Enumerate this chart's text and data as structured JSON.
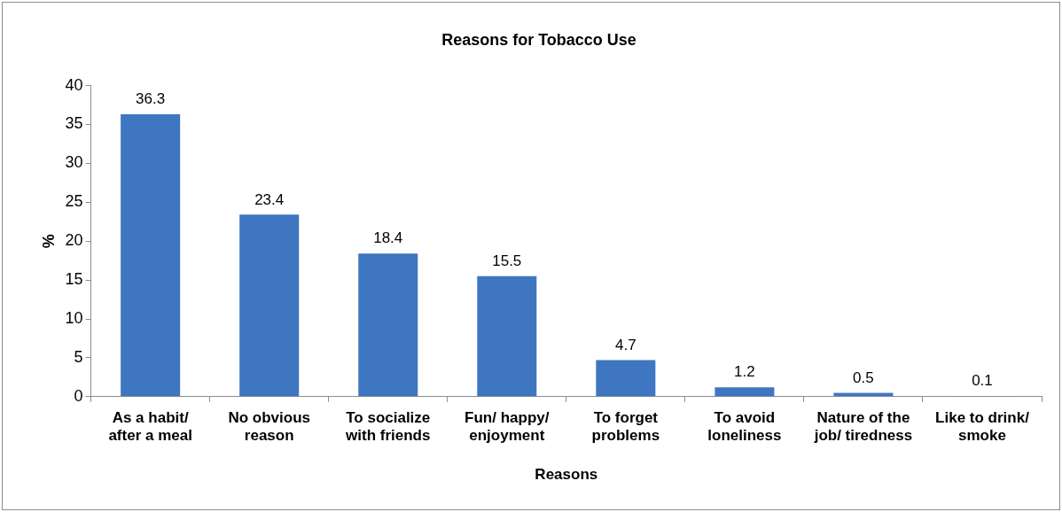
{
  "chart_data": {
    "type": "bar",
    "title": "Reasons for Tobacco Use",
    "xlabel": "Reasons",
    "ylabel": "%",
    "categories": [
      "As a habit/ after a meal",
      "No obvious reason",
      "To socialize with friends",
      "Fun/ happy/ enjoyment",
      "To forget problems",
      "To avoid loneliness",
      "Nature of the job/ tiredness",
      "Like to drink/ smoke"
    ],
    "values": [
      36.3,
      23.4,
      18.4,
      15.5,
      4.7,
      1.2,
      0.5,
      0.1
    ],
    "color": "#3f76c2",
    "ylim": [
      0,
      40
    ],
    "yticks": [
      0,
      5,
      10,
      15,
      20,
      25,
      30,
      35,
      40
    ],
    "grid": false,
    "data_labels": true
  }
}
